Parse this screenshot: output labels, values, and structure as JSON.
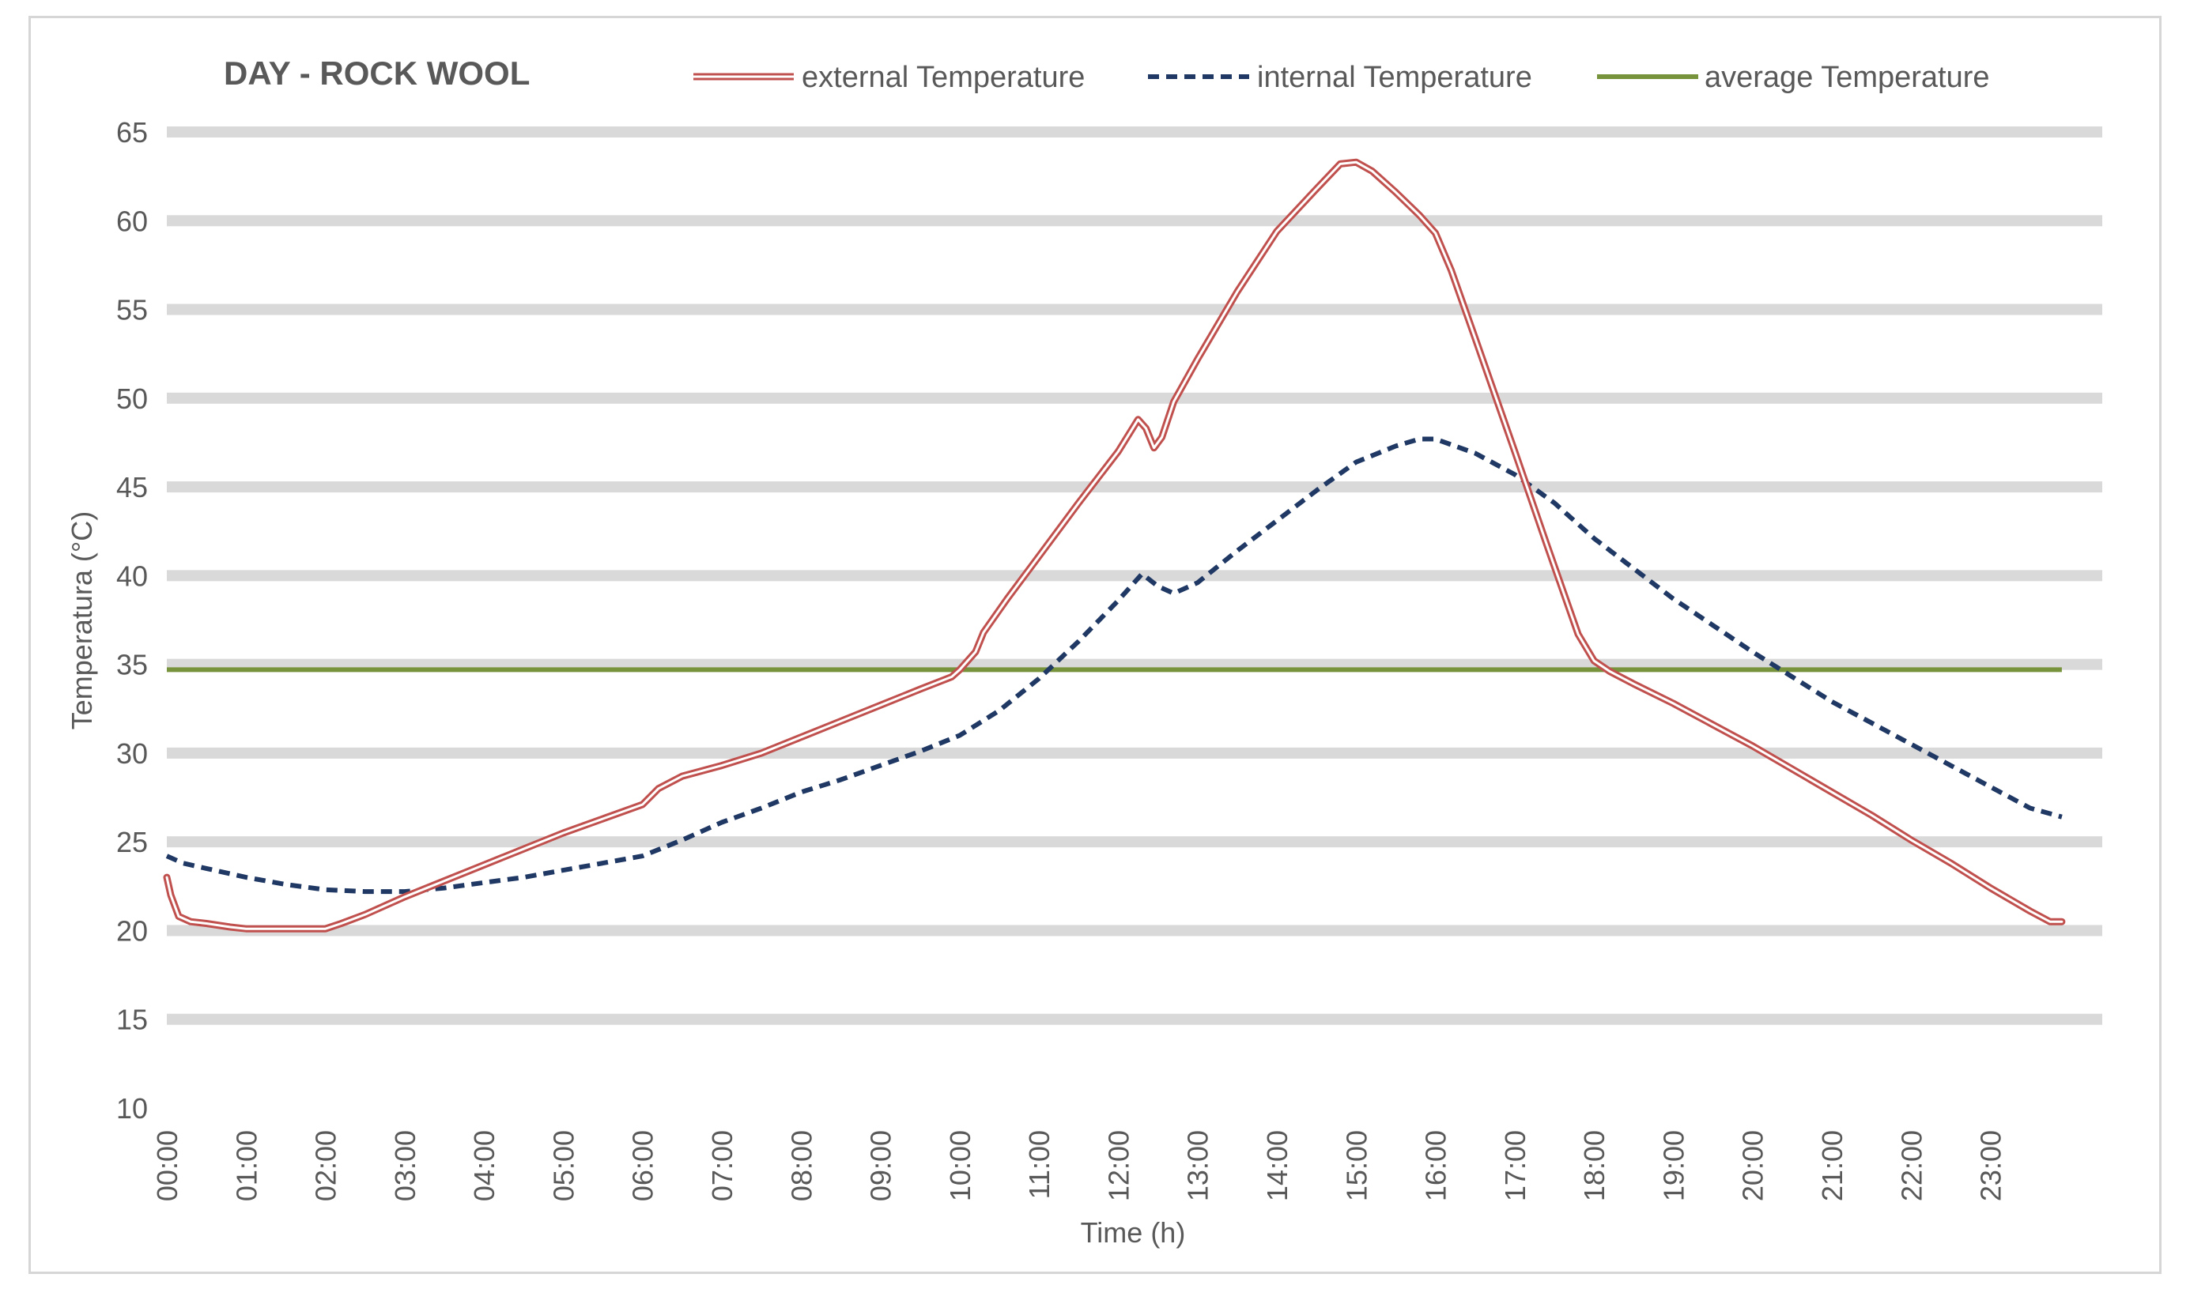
{
  "chart_data": {
    "type": "line",
    "title": "DAY - ROCK WOOL",
    "xlabel": "Time (h)",
    "ylabel": "Temperatura (°C)",
    "ylim": [
      10,
      65
    ],
    "yticks": [
      10,
      15,
      20,
      25,
      30,
      35,
      40,
      45,
      50,
      55,
      60,
      65
    ],
    "xlim": [
      0,
      24
    ],
    "xticks": [
      "00:00",
      "01:00",
      "02:00",
      "03:00",
      "04:00",
      "05:00",
      "06:00",
      "07:00",
      "08:00",
      "09:00",
      "10:00",
      "11:00",
      "12:00",
      "13:00",
      "14:00",
      "15:00",
      "16:00",
      "17:00",
      "18:00",
      "19:00",
      "20:00",
      "21:00",
      "22:00",
      "23:00"
    ],
    "grid": "horizontal",
    "legend_position": "top",
    "series": [
      {
        "name": "external Temperature",
        "color": "#c0504d",
        "style": "double-line",
        "points": [
          [
            0,
            23
          ],
          [
            0.05,
            22
          ],
          [
            0.15,
            20.8
          ],
          [
            0.3,
            20.5
          ],
          [
            0.5,
            20.4
          ],
          [
            0.8,
            20.2
          ],
          [
            1.0,
            20.1
          ],
          [
            1.5,
            20.1
          ],
          [
            2.0,
            20.1
          ],
          [
            2.2,
            20.4
          ],
          [
            2.5,
            20.9
          ],
          [
            3.0,
            21.9
          ],
          [
            3.5,
            22.8
          ],
          [
            4.0,
            23.7
          ],
          [
            4.5,
            24.6
          ],
          [
            5.0,
            25.5
          ],
          [
            5.5,
            26.3
          ],
          [
            6.0,
            27.1
          ],
          [
            6.2,
            28.0
          ],
          [
            6.5,
            28.7
          ],
          [
            7.0,
            29.3
          ],
          [
            7.5,
            30.0
          ],
          [
            8.0,
            30.9
          ],
          [
            8.5,
            31.8
          ],
          [
            9.0,
            32.7
          ],
          [
            9.5,
            33.6
          ],
          [
            9.9,
            34.3
          ],
          [
            10.0,
            34.7
          ],
          [
            10.2,
            35.7
          ],
          [
            10.3,
            36.8
          ],
          [
            10.6,
            38.7
          ],
          [
            11.0,
            41.1
          ],
          [
            11.5,
            44.1
          ],
          [
            12.0,
            47.0
          ],
          [
            12.25,
            48.8
          ],
          [
            12.35,
            48.3
          ],
          [
            12.45,
            47.2
          ],
          [
            12.55,
            47.8
          ],
          [
            12.7,
            49.8
          ],
          [
            13.0,
            52.2
          ],
          [
            13.5,
            56.0
          ],
          [
            14.0,
            59.4
          ],
          [
            14.5,
            61.8
          ],
          [
            14.8,
            63.2
          ],
          [
            15.0,
            63.3
          ],
          [
            15.2,
            62.8
          ],
          [
            15.5,
            61.6
          ],
          [
            15.8,
            60.3
          ],
          [
            16.0,
            59.3
          ],
          [
            16.2,
            57.2
          ],
          [
            16.5,
            53.4
          ],
          [
            17.0,
            47.0
          ],
          [
            17.4,
            41.8
          ],
          [
            17.8,
            36.7
          ],
          [
            18.0,
            35.2
          ],
          [
            18.2,
            34.6
          ],
          [
            18.5,
            33.9
          ],
          [
            19.0,
            32.8
          ],
          [
            19.5,
            31.6
          ],
          [
            20.0,
            30.4
          ],
          [
            20.5,
            29.1
          ],
          [
            21.0,
            27.8
          ],
          [
            21.5,
            26.5
          ],
          [
            22.0,
            25.1
          ],
          [
            22.5,
            23.8
          ],
          [
            23.0,
            22.4
          ],
          [
            23.5,
            21.1
          ],
          [
            23.75,
            20.5
          ],
          [
            23.9,
            20.5
          ]
        ]
      },
      {
        "name": "internal Temperature",
        "color": "#1f3864",
        "style": "dashed",
        "points": [
          [
            0,
            24.2
          ],
          [
            0.2,
            23.8
          ],
          [
            0.5,
            23.5
          ],
          [
            1.0,
            23.0
          ],
          [
            1.5,
            22.6
          ],
          [
            2.0,
            22.3
          ],
          [
            2.5,
            22.2
          ],
          [
            3.0,
            22.2
          ],
          [
            3.5,
            22.4
          ],
          [
            4.0,
            22.7
          ],
          [
            4.5,
            23.0
          ],
          [
            5.0,
            23.4
          ],
          [
            5.5,
            23.8
          ],
          [
            6.0,
            24.2
          ],
          [
            6.5,
            25.1
          ],
          [
            7.0,
            26.1
          ],
          [
            7.5,
            26.9
          ],
          [
            8.0,
            27.8
          ],
          [
            8.5,
            28.5
          ],
          [
            9.0,
            29.3
          ],
          [
            9.5,
            30.1
          ],
          [
            10.0,
            31.0
          ],
          [
            10.5,
            32.4
          ],
          [
            11.0,
            34.2
          ],
          [
            11.5,
            36.3
          ],
          [
            12.0,
            38.6
          ],
          [
            12.3,
            40.1
          ],
          [
            12.5,
            39.4
          ],
          [
            12.7,
            39.0
          ],
          [
            13.0,
            39.6
          ],
          [
            13.5,
            41.4
          ],
          [
            14.0,
            43.1
          ],
          [
            14.5,
            44.8
          ],
          [
            15.0,
            46.4
          ],
          [
            15.5,
            47.3
          ],
          [
            15.8,
            47.7
          ],
          [
            16.0,
            47.7
          ],
          [
            16.5,
            46.9
          ],
          [
            17.0,
            45.7
          ],
          [
            17.5,
            44.1
          ],
          [
            18.0,
            42.1
          ],
          [
            18.5,
            40.4
          ],
          [
            19.0,
            38.7
          ],
          [
            19.5,
            37.2
          ],
          [
            20.0,
            35.7
          ],
          [
            20.5,
            34.3
          ],
          [
            21.0,
            32.9
          ],
          [
            21.5,
            31.7
          ],
          [
            22.0,
            30.5
          ],
          [
            22.5,
            29.3
          ],
          [
            23.0,
            28.1
          ],
          [
            23.5,
            26.9
          ],
          [
            23.9,
            26.4
          ]
        ]
      },
      {
        "name": "average Temperature",
        "color": "#77933c",
        "style": "solid",
        "points": [
          [
            0,
            34.7
          ],
          [
            23.9,
            34.7
          ]
        ]
      }
    ]
  }
}
